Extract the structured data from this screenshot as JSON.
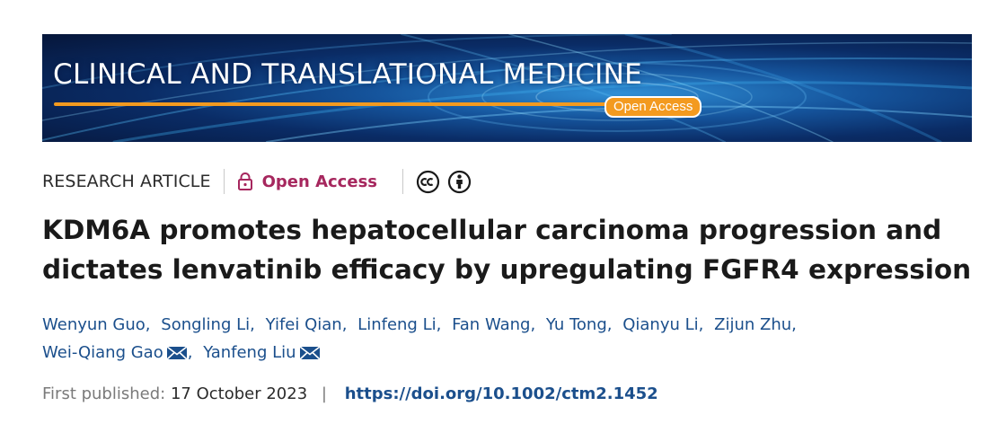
{
  "banner": {
    "journal_title": "CLINICAL AND TRANSLATIONAL MEDICINE",
    "badge": "Open Access",
    "colors": {
      "background": "#0a2c66",
      "accent": "#f39a1f"
    }
  },
  "meta": {
    "article_type": "RESEARCH ARTICLE",
    "open_access": "Open Access",
    "icons": [
      "lock-icon",
      "creative-commons-icon",
      "attribution-icon"
    ],
    "colors": {
      "open_access": "#a6275e"
    }
  },
  "title": {
    "line1": "KDM6A promotes hepatocellular carcinoma progression and",
    "line2": "dictates lenvatinib efficacy by upregulating FGFR4 expression"
  },
  "authors": [
    {
      "name": "Wenyun Guo"
    },
    {
      "name": "Songling Li"
    },
    {
      "name": "Yifei Qian"
    },
    {
      "name": "Linfeng Li"
    },
    {
      "name": "Fan Wang"
    },
    {
      "name": "Yu Tong"
    },
    {
      "name": "Qianyu Li"
    },
    {
      "name": "Zijun Zhu"
    },
    {
      "name": "Wei-Qiang Gao"
    },
    {
      "name": "Yanfeng Liu"
    }
  ],
  "author_separator": ",",
  "publication": {
    "label": "First published:",
    "date": "17 October 2023",
    "separator": "|",
    "doi": "https://doi.org/10.1002/ctm2.1452",
    "colors": {
      "link": "#1b4f8c"
    }
  }
}
